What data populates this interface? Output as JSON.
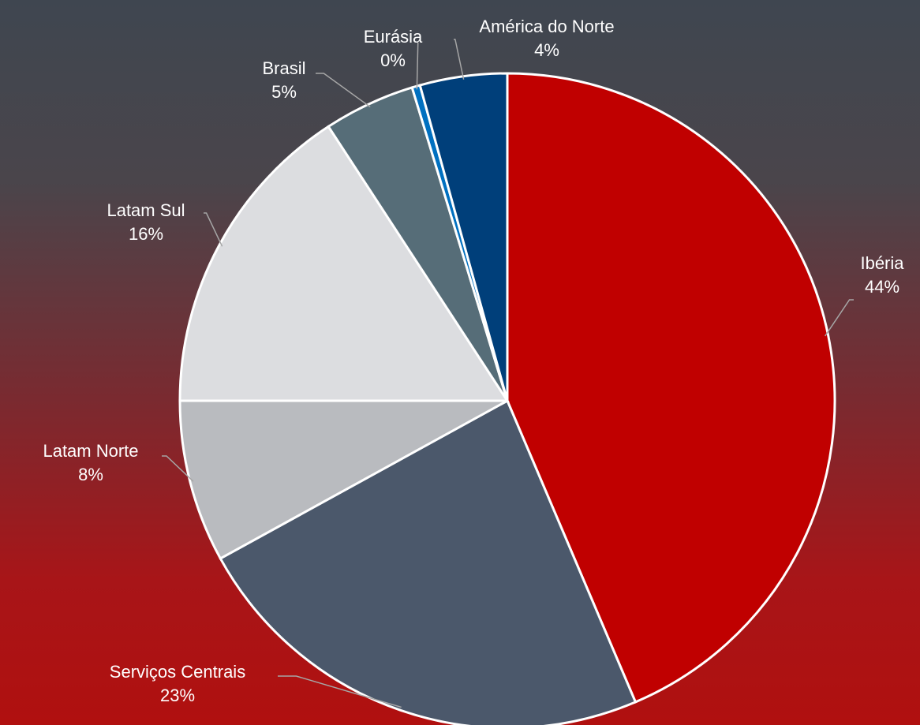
{
  "chart_data": {
    "type": "pie",
    "categories": [
      "Ibéria",
      "Serviços Centrais",
      "Latam Norte",
      "Latam Sul",
      "Brasil",
      "Eurásia",
      "América do Norte"
    ],
    "values": [
      43.6,
      23.4,
      8,
      15.8,
      4.5,
      0.4,
      4.3
    ],
    "value_labels": [
      "44%",
      "23%",
      "8%",
      "16%",
      "5%",
      "0%",
      "4%"
    ],
    "colors": [
      "#c00000",
      "#4b586b",
      "#b9bbbf",
      "#dcdde0",
      "#566d78",
      "#0070c0",
      "#003f7a"
    ]
  }
}
